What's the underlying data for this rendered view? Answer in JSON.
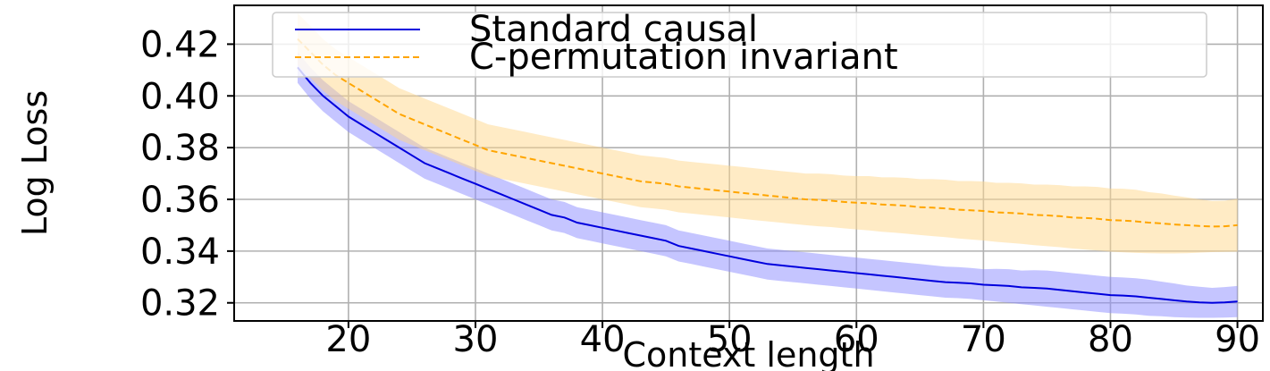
{
  "chart_data": {
    "type": "line",
    "title": "",
    "xlabel": "Context length",
    "ylabel": "Log Loss",
    "xlim": [
      11,
      92
    ],
    "ylim": [
      0.313,
      0.435
    ],
    "xticks": [
      20,
      30,
      40,
      50,
      60,
      70,
      80,
      90
    ],
    "xtick_labels": [
      "20",
      "30",
      "40",
      "50",
      "60",
      "70",
      "80",
      "90"
    ],
    "yticks": [
      0.32,
      0.34,
      0.36,
      0.38,
      0.4,
      0.42
    ],
    "ytick_labels": [
      "0.32",
      "0.34",
      "0.36",
      "0.38",
      "0.40",
      "0.42"
    ],
    "grid": true,
    "legend_position": "top-right",
    "x": [
      16,
      17,
      18,
      19,
      20,
      21,
      22,
      23,
      24,
      25,
      26,
      27,
      28,
      29,
      30,
      31,
      32,
      33,
      34,
      35,
      36,
      37,
      38,
      39,
      40,
      41,
      42,
      43,
      44,
      45,
      46,
      47,
      48,
      49,
      50,
      51,
      52,
      53,
      54,
      55,
      56,
      57,
      58,
      59,
      60,
      61,
      62,
      63,
      64,
      65,
      66,
      67,
      68,
      69,
      70,
      71,
      72,
      73,
      74,
      75,
      76,
      77,
      78,
      79,
      80,
      81,
      82,
      83,
      84,
      85,
      86,
      87,
      88,
      89,
      90
    ],
    "series": [
      {
        "name": "Standard causal",
        "color": "#0000dd",
        "line_style": "solid",
        "band_color": "#8c8cff",
        "values": [
          0.411,
          0.405,
          0.4,
          0.396,
          0.392,
          0.389,
          0.386,
          0.383,
          0.38,
          0.377,
          0.374,
          0.372,
          0.37,
          0.368,
          0.366,
          0.364,
          0.362,
          0.36,
          0.358,
          0.356,
          0.354,
          0.353,
          0.351,
          0.35,
          0.349,
          0.348,
          0.347,
          0.346,
          0.345,
          0.344,
          0.342,
          0.341,
          0.34,
          0.339,
          0.338,
          0.337,
          0.336,
          0.335,
          0.3345,
          0.334,
          0.3335,
          0.333,
          0.3325,
          0.332,
          0.3315,
          0.331,
          0.3305,
          0.33,
          0.3295,
          0.329,
          0.3285,
          0.328,
          0.3278,
          0.3275,
          0.327,
          0.3268,
          0.3265,
          0.326,
          0.3258,
          0.3255,
          0.325,
          0.3245,
          0.324,
          0.3235,
          0.323,
          0.3228,
          0.3225,
          0.322,
          0.3215,
          0.321,
          0.3205,
          0.3202,
          0.32,
          0.3202,
          0.3205
        ],
        "band_lower": [
          0.405,
          0.399,
          0.394,
          0.39,
          0.386,
          0.383,
          0.38,
          0.377,
          0.374,
          0.371,
          0.368,
          0.366,
          0.364,
          0.362,
          0.36,
          0.358,
          0.356,
          0.354,
          0.352,
          0.35,
          0.348,
          0.347,
          0.345,
          0.344,
          0.343,
          0.342,
          0.341,
          0.34,
          0.339,
          0.338,
          0.336,
          0.335,
          0.334,
          0.333,
          0.332,
          0.331,
          0.33,
          0.329,
          0.3285,
          0.328,
          0.3275,
          0.327,
          0.3265,
          0.326,
          0.3255,
          0.325,
          0.3245,
          0.324,
          0.3235,
          0.323,
          0.3225,
          0.322,
          0.3218,
          0.3215,
          0.321,
          0.3205,
          0.32,
          0.3195,
          0.319,
          0.3185,
          0.318,
          0.3175,
          0.317,
          0.3165,
          0.316,
          0.3158,
          0.3155,
          0.315,
          0.3148,
          0.3145,
          0.3143,
          0.3142,
          0.3142,
          0.3143,
          0.3145
        ],
        "band_upper": [
          0.417,
          0.411,
          0.406,
          0.402,
          0.398,
          0.395,
          0.392,
          0.389,
          0.386,
          0.383,
          0.38,
          0.378,
          0.376,
          0.374,
          0.372,
          0.37,
          0.368,
          0.366,
          0.364,
          0.362,
          0.36,
          0.359,
          0.357,
          0.356,
          0.355,
          0.354,
          0.353,
          0.352,
          0.351,
          0.35,
          0.348,
          0.347,
          0.346,
          0.345,
          0.344,
          0.343,
          0.342,
          0.341,
          0.3405,
          0.34,
          0.3395,
          0.339,
          0.3385,
          0.338,
          0.3375,
          0.337,
          0.3365,
          0.336,
          0.3355,
          0.335,
          0.3345,
          0.334,
          0.3338,
          0.3335,
          0.333,
          0.3331,
          0.333,
          0.3325,
          0.3326,
          0.3325,
          0.332,
          0.3315,
          0.331,
          0.3305,
          0.33,
          0.3298,
          0.3295,
          0.329,
          0.3282,
          0.3275,
          0.3267,
          0.3262,
          0.3258,
          0.3261,
          0.3265
        ]
      },
      {
        "name": "C-permutation invariant",
        "color": "#ffa500",
        "line_style": "dashed",
        "band_color": "#ffd88c",
        "values": [
          0.422,
          0.417,
          0.412,
          0.408,
          0.405,
          0.402,
          0.399,
          0.396,
          0.393,
          0.391,
          0.389,
          0.387,
          0.385,
          0.383,
          0.381,
          0.379,
          0.378,
          0.377,
          0.376,
          0.375,
          0.374,
          0.373,
          0.372,
          0.371,
          0.37,
          0.369,
          0.368,
          0.367,
          0.3665,
          0.366,
          0.365,
          0.3645,
          0.364,
          0.3635,
          0.363,
          0.3625,
          0.362,
          0.3615,
          0.361,
          0.3605,
          0.36,
          0.3598,
          0.3595,
          0.359,
          0.3587,
          0.3585,
          0.358,
          0.3578,
          0.3575,
          0.357,
          0.3568,
          0.3565,
          0.356,
          0.3558,
          0.3555,
          0.355,
          0.3548,
          0.3545,
          0.354,
          0.3538,
          0.3535,
          0.353,
          0.3528,
          0.3525,
          0.352,
          0.3518,
          0.3515,
          0.351,
          0.3507,
          0.3503,
          0.35,
          0.3497,
          0.3495,
          0.3496,
          0.35
        ],
        "band_lower": [
          0.412,
          0.407,
          0.402,
          0.398,
          0.395,
          0.392,
          0.389,
          0.386,
          0.383,
          0.381,
          0.379,
          0.377,
          0.375,
          0.373,
          0.371,
          0.369,
          0.368,
          0.367,
          0.366,
          0.365,
          0.364,
          0.363,
          0.362,
          0.361,
          0.36,
          0.359,
          0.358,
          0.357,
          0.3565,
          0.356,
          0.355,
          0.3545,
          0.354,
          0.3535,
          0.353,
          0.3525,
          0.352,
          0.3515,
          0.351,
          0.3505,
          0.35,
          0.3496,
          0.3493,
          0.3488,
          0.3484,
          0.348,
          0.3475,
          0.3471,
          0.3467,
          0.3462,
          0.3458,
          0.3454,
          0.3449,
          0.3445,
          0.3441,
          0.3436,
          0.3432,
          0.3428,
          0.3423,
          0.3419,
          0.3415,
          0.341,
          0.3406,
          0.3402,
          0.3398,
          0.3395,
          0.3393,
          0.3392,
          0.3391,
          0.3391,
          0.3392,
          0.3394,
          0.3396,
          0.3397,
          0.3398
        ],
        "band_upper": [
          0.432,
          0.427,
          0.422,
          0.418,
          0.415,
          0.412,
          0.409,
          0.406,
          0.403,
          0.401,
          0.399,
          0.397,
          0.395,
          0.393,
          0.391,
          0.389,
          0.388,
          0.387,
          0.386,
          0.385,
          0.384,
          0.383,
          0.382,
          0.381,
          0.38,
          0.379,
          0.378,
          0.377,
          0.3765,
          0.376,
          0.375,
          0.3745,
          0.374,
          0.3735,
          0.373,
          0.3725,
          0.372,
          0.3715,
          0.371,
          0.3705,
          0.37,
          0.37,
          0.3697,
          0.3692,
          0.369,
          0.369,
          0.3685,
          0.3685,
          0.3683,
          0.3678,
          0.3678,
          0.3676,
          0.3671,
          0.3671,
          0.3669,
          0.3664,
          0.3664,
          0.3662,
          0.3657,
          0.3657,
          0.3655,
          0.365,
          0.365,
          0.3648,
          0.3642,
          0.3641,
          0.3637,
          0.3628,
          0.3623,
          0.3615,
          0.3608,
          0.36,
          0.3594,
          0.3595,
          0.3602
        ]
      }
    ]
  }
}
